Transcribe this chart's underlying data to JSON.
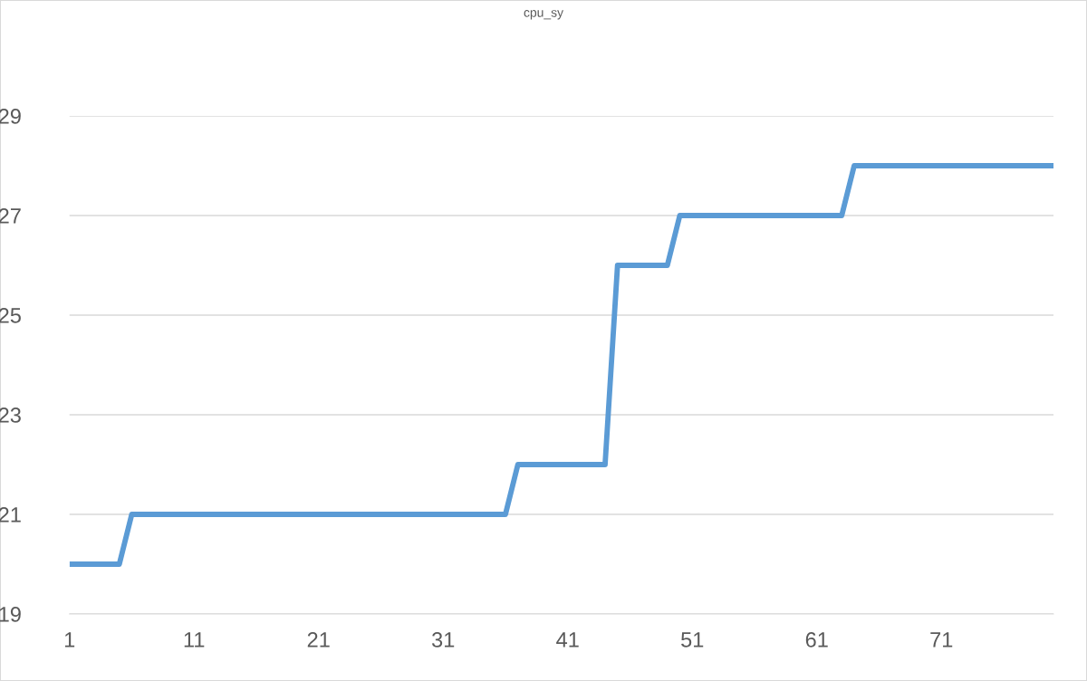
{
  "chart_data": {
    "type": "line",
    "title": "cpu_sy",
    "categories": [
      "1",
      null,
      null,
      null,
      null,
      null,
      null,
      null,
      null,
      null,
      "11",
      null,
      null,
      null,
      null,
      null,
      null,
      null,
      null,
      null,
      "21",
      null,
      null,
      null,
      null,
      null,
      null,
      null,
      null,
      null,
      "31",
      null,
      null,
      null,
      null,
      null,
      null,
      null,
      null,
      null,
      "41",
      null,
      null,
      null,
      null,
      null,
      null,
      null,
      null,
      null,
      "51",
      null,
      null,
      null,
      null,
      null,
      null,
      null,
      null,
      null,
      "61",
      null,
      null,
      null,
      null,
      null,
      null,
      null,
      null,
      null,
      "71",
      null,
      null,
      null,
      null,
      null,
      null,
      null,
      null,
      null
    ],
    "series": [
      {
        "color": "#5b9bd5",
        "values": [
          20,
          20,
          20,
          20,
          20,
          21,
          21,
          21,
          21,
          21,
          21,
          21,
          21,
          21,
          21,
          21,
          21,
          21,
          21,
          21,
          21,
          21,
          21,
          21,
          21,
          21,
          21,
          21,
          21,
          21,
          21,
          21,
          21,
          21,
          21,
          21,
          22,
          22,
          22,
          22,
          22,
          22,
          22,
          22,
          26,
          26,
          26,
          26,
          26,
          27,
          27,
          27,
          27,
          27,
          27,
          27,
          27,
          27,
          27,
          27,
          27,
          27,
          27,
          28,
          28,
          28,
          28,
          28,
          28,
          28,
          28,
          28,
          28,
          28,
          28,
          28,
          28,
          28,
          28,
          28
        ]
      }
    ],
    "ylim": [
      19,
      29
    ],
    "yticks": [
      19,
      21,
      23,
      25,
      27,
      29
    ],
    "grid": "y",
    "legend": false,
    "marker": "none",
    "line_style": "solid"
  }
}
